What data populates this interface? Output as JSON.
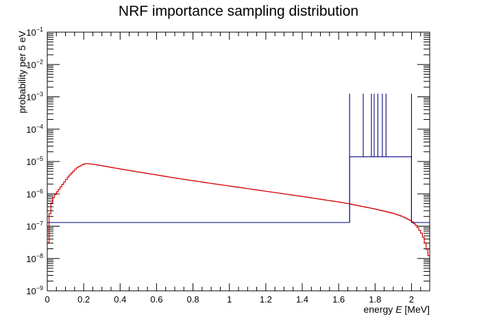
{
  "chart_data": {
    "type": "line",
    "title": "NRF importance sampling distribution",
    "ylabel": "probability per 5 eV",
    "xlabel": {
      "prefix": "energy ",
      "symbol": "E",
      "unit": " [MeV]"
    },
    "xlim": [
      0,
      2.1
    ],
    "ylim_log10": [
      -9,
      -1
    ],
    "yscale": "log",
    "x_ticks": [
      {
        "v": 0,
        "label": "0"
      },
      {
        "v": 0.2,
        "label": "0.2"
      },
      {
        "v": 0.4,
        "label": "0.4"
      },
      {
        "v": 0.6,
        "label": "0.6"
      },
      {
        "v": 0.8,
        "label": "0.8"
      },
      {
        "v": 1.0,
        "label": "1"
      },
      {
        "v": 1.2,
        "label": "1.2"
      },
      {
        "v": 1.4,
        "label": "1.4"
      },
      {
        "v": 1.6,
        "label": "1.6"
      },
      {
        "v": 1.8,
        "label": "1.8"
      },
      {
        "v": 2.0,
        "label": "2"
      }
    ],
    "y_ticks": [
      {
        "exp": -9,
        "base": "10",
        "sup": "−9"
      },
      {
        "exp": -8,
        "base": "10",
        "sup": "−8"
      },
      {
        "exp": -7,
        "base": "10",
        "sup": "−7"
      },
      {
        "exp": -6,
        "base": "10",
        "sup": "−6"
      },
      {
        "exp": -5,
        "base": "10",
        "sup": "−5"
      },
      {
        "exp": -4,
        "base": "10",
        "sup": "−4"
      },
      {
        "exp": -3,
        "base": "10",
        "sup": "−3"
      },
      {
        "exp": -2,
        "base": "10",
        "sup": "−2"
      },
      {
        "exp": -1,
        "base": "10",
        "sup": "−1"
      }
    ],
    "series": [
      {
        "color": "#d40000",
        "style": "step",
        "x": [
          0.002,
          0.01,
          0.02,
          0.03,
          0.05,
          0.08,
          0.12,
          0.16,
          0.2,
          0.22,
          0.26,
          0.3,
          0.4,
          0.5,
          0.6,
          0.7,
          0.8,
          0.9,
          1.0,
          1.1,
          1.2,
          1.3,
          1.4,
          1.5,
          1.6,
          1.66,
          1.7,
          1.8,
          1.9,
          1.95,
          2.0,
          2.03,
          2.06,
          2.08,
          2.09,
          2.1
        ],
        "y": [
          1.2e-08,
          1.5e-07,
          4e-07,
          7e-07,
          1.05e-06,
          1.8e-06,
          3.6e-06,
          6.2e-06,
          8.3e-06,
          8.6e-06,
          8.1e-06,
          7.4e-06,
          5.9e-06,
          4.75e-06,
          3.85e-06,
          3.1e-06,
          2.55e-06,
          2.1e-06,
          1.75e-06,
          1.45e-06,
          1.2e-06,
          1e-06,
          8.3e-07,
          6.8e-07,
          5.6e-07,
          4.9e-07,
          4.4e-07,
          3.4e-07,
          2.5e-07,
          2e-07,
          1.45e-07,
          1e-07,
          5.5e-08,
          2.5e-08,
          1.5e-08,
          1e-08
        ]
      },
      {
        "color": "#00007f",
        "style": "hist",
        "edges": [
          0.0,
          1.66,
          2.0,
          2.1
        ],
        "values": [
          1.3e-07,
          1.4e-05,
          1.3e-07
        ],
        "spikes": [
          {
            "x": 1.66,
            "y": 0.00125
          },
          {
            "x": 1.735,
            "y": 0.00125
          },
          {
            "x": 1.78,
            "y": 0.00125
          },
          {
            "x": 1.795,
            "y": 0.00125
          },
          {
            "x": 1.815,
            "y": 0.00125
          },
          {
            "x": 1.84,
            "y": 0.00125
          },
          {
            "x": 1.86,
            "y": 0.00125
          },
          {
            "x": 2.0,
            "y": 0.00125
          }
        ]
      }
    ]
  }
}
